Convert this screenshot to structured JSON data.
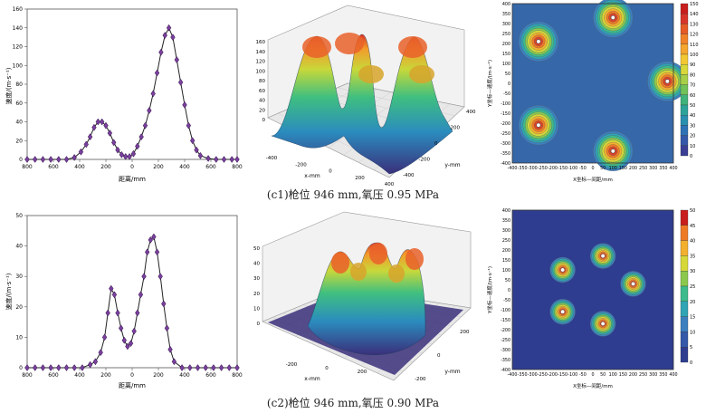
{
  "captions": [
    "(c1)枪位 946 mm,氧压 0.95 MPa",
    "(c2)枪位 946 mm,氧压 0.90 MPa"
  ],
  "chart_data": [
    {
      "type": "line",
      "panel": "c1-profile",
      "xlabel": "距离/mm",
      "ylabel": "速度/(m·s⁻¹)",
      "xlim": [
        -800,
        800
      ],
      "ylim": [
        0,
        160
      ],
      "x_ticks": [
        "800",
        "600",
        "400",
        "200",
        "0",
        "200",
        "400",
        "600",
        "800"
      ],
      "y_ticks": [
        "0",
        "20",
        "40",
        "60",
        "80",
        "100",
        "120",
        "140",
        "160"
      ],
      "series": [
        {
          "name": "profile",
          "x": [
            -800,
            -740,
            -680,
            -620,
            -560,
            -500,
            -440,
            -390,
            -350,
            -320,
            -290,
            -260,
            -230,
            -200,
            -170,
            -140,
            -110,
            -80,
            -50,
            -20,
            10,
            40,
            70,
            100,
            130,
            160,
            190,
            220,
            250,
            280,
            310,
            340,
            370,
            400,
            430,
            460,
            490,
            520,
            580,
            640,
            700,
            760,
            800
          ],
          "y": [
            0,
            0,
            0,
            0,
            0,
            0,
            2,
            8,
            16,
            24,
            34,
            40,
            40,
            36,
            28,
            18,
            10,
            5,
            3,
            3,
            6,
            14,
            24,
            36,
            52,
            70,
            92,
            114,
            132,
            140,
            130,
            106,
            82,
            58,
            36,
            20,
            10,
            4,
            1,
            0,
            0,
            0,
            0
          ]
        }
      ]
    },
    {
      "type": "surface",
      "panel": "c1-3d",
      "xlabel": "x-mm",
      "ylabel": "y-mm",
      "zlim": [
        0,
        160
      ],
      "z_ticks": [
        "0",
        "20",
        "40",
        "60",
        "80",
        "100",
        "120",
        "140",
        "160"
      ],
      "x_ticks": [
        "-400",
        "-200",
        "0",
        "200",
        "400"
      ],
      "y_ticks": [
        "-400",
        "-200",
        "0",
        "200",
        "400"
      ]
    },
    {
      "type": "heatmap",
      "panel": "c1-contour",
      "xlabel": "X坐标—间距/mm",
      "ylabel": "Y坐标—速度/(m·s⁻¹)",
      "x_ticks": [
        "-400",
        "-350",
        "-300",
        "-250",
        "-200",
        "-150",
        "-100",
        "-50",
        "0",
        "50",
        "100",
        "150",
        "200",
        "250",
        "300",
        "350",
        "400"
      ],
      "y_ticks": [
        "400",
        "350",
        "300",
        "250",
        "200",
        "150",
        "100",
        "50",
        "0",
        "-50",
        "-100",
        "-150",
        "-200",
        "-250",
        "-300",
        "-350",
        "-400"
      ],
      "colorbar_ticks": [
        "150",
        "140",
        "130",
        "120",
        "110",
        "100",
        "90",
        "80",
        "70",
        "60",
        "50",
        "40",
        "30",
        "20",
        "10",
        "0"
      ],
      "peaks": [
        {
          "x": 100,
          "y": 330,
          "value": 150
        },
        {
          "x": -270,
          "y": 210,
          "value": 150
        },
        {
          "x": 370,
          "y": 10,
          "value": 150
        },
        {
          "x": -270,
          "y": -210,
          "value": 150
        },
        {
          "x": 100,
          "y": -340,
          "value": 150
        }
      ]
    },
    {
      "type": "line",
      "panel": "c2-profile",
      "xlabel": "距离/mm",
      "ylabel": "速度/(m·s⁻¹)",
      "xlim": [
        -800,
        800
      ],
      "ylim": [
        0,
        50
      ],
      "x_ticks": [
        "800",
        "600",
        "400",
        "200",
        "0",
        "200",
        "400",
        "600",
        "800"
      ],
      "y_ticks": [
        "0",
        "10",
        "20",
        "30",
        "40",
        "50"
      ],
      "series": [
        {
          "name": "profile",
          "x": [
            -800,
            -740,
            -680,
            -620,
            -560,
            -500,
            -440,
            -380,
            -320,
            -280,
            -240,
            -210,
            -185,
            -160,
            -135,
            -110,
            -85,
            -60,
            -35,
            -10,
            15,
            40,
            65,
            90,
            115,
            140,
            165,
            190,
            215,
            240,
            265,
            290,
            320,
            380,
            440,
            500,
            560,
            620,
            680,
            740,
            800
          ],
          "y": [
            0,
            0,
            0,
            0,
            0,
            0,
            0,
            0,
            1,
            2,
            5,
            10,
            18,
            26,
            24,
            18,
            13,
            9,
            7,
            8,
            12,
            18,
            24,
            30,
            38,
            42,
            43,
            38,
            30,
            21,
            13,
            6,
            2,
            0,
            0,
            0,
            0,
            0,
            0,
            0,
            0
          ]
        }
      ]
    },
    {
      "type": "surface",
      "panel": "c2-3d",
      "xlabel": "x-mm",
      "ylabel": "y-mm",
      "zlim": [
        0,
        50
      ],
      "z_ticks": [
        "0",
        "10",
        "20",
        "30",
        "40",
        "50"
      ],
      "x_ticks": [
        "-200",
        "0",
        "200"
      ],
      "y_ticks": [
        "-200",
        "0",
        "200"
      ]
    },
    {
      "type": "heatmap",
      "panel": "c2-contour",
      "xlabel": "X坐标—间距/mm",
      "ylabel": "Y坐标—速度/(m·s⁻¹)",
      "x_ticks": [
        "-400",
        "-350",
        "-300",
        "-250",
        "-200",
        "-150",
        "-100",
        "-50",
        "0",
        "50",
        "100",
        "150",
        "200",
        "250",
        "300",
        "350",
        "400"
      ],
      "y_ticks": [
        "400",
        "350",
        "300",
        "250",
        "200",
        "150",
        "100",
        "50",
        "0",
        "-50",
        "-100",
        "-150",
        "-200",
        "-250",
        "-300",
        "-350",
        "-400"
      ],
      "colorbar_ticks": [
        "50",
        "45",
        "40",
        "35",
        "30",
        "25",
        "20",
        "15",
        "10",
        "5",
        "0"
      ],
      "peaks": [
        {
          "x": 50,
          "y": 170,
          "value": 50
        },
        {
          "x": -150,
          "y": 100,
          "value": 50
        },
        {
          "x": 200,
          "y": 30,
          "value": 50
        },
        {
          "x": -150,
          "y": -110,
          "value": 50
        },
        {
          "x": 50,
          "y": -170,
          "value": 50
        }
      ]
    }
  ]
}
